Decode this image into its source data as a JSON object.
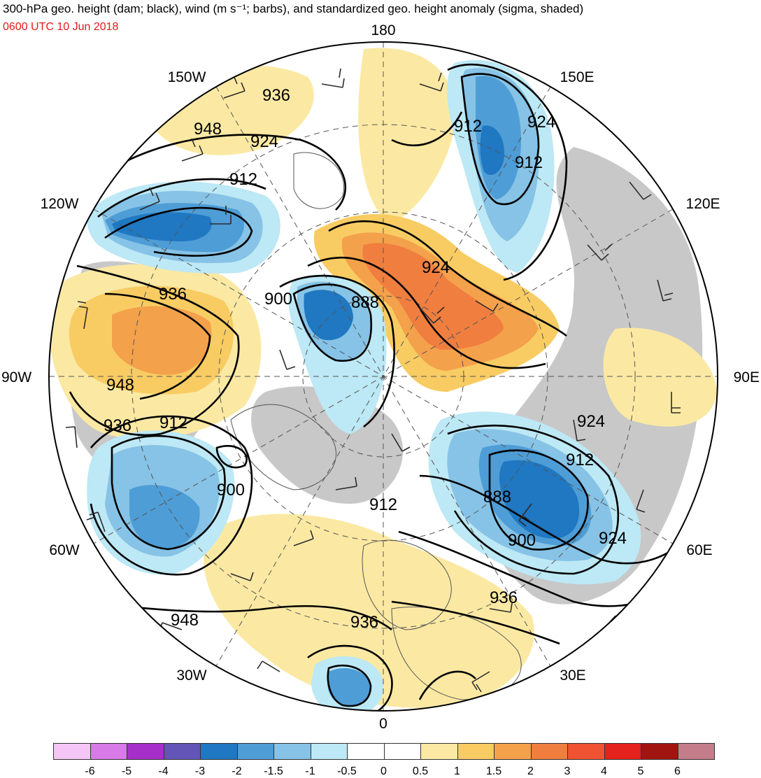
{
  "header": {
    "title": "300-hPa geo. height (dam; black), wind (m s⁻¹; barbs), and standardized geo. height anomaly (sigma, shaded)",
    "valid_time": "0600 UTC 10 Jun 2018"
  },
  "map": {
    "projection": "north polar stereographic",
    "meridian_labels": [
      {
        "id": "lbl-180",
        "text": "180"
      },
      {
        "id": "lbl-150e",
        "text": "150E"
      },
      {
        "id": "lbl-120e",
        "text": "120E"
      },
      {
        "id": "lbl-90e",
        "text": "90E"
      },
      {
        "id": "lbl-60e",
        "text": "60E"
      },
      {
        "id": "lbl-30e",
        "text": "30E"
      },
      {
        "id": "lbl-0",
        "text": "0"
      },
      {
        "id": "lbl-30w",
        "text": "30W"
      },
      {
        "id": "lbl-60w",
        "text": "60W"
      },
      {
        "id": "lbl-90w",
        "text": "90W"
      },
      {
        "id": "lbl-120w",
        "text": "120W"
      },
      {
        "id": "lbl-150w",
        "text": "150W"
      }
    ],
    "contour_labels": [
      "936",
      "948",
      "924",
      "912",
      "912",
      "924",
      "912",
      "924",
      "936",
      "900",
      "888",
      "948",
      "936",
      "912",
      "900",
      "912",
      "924",
      "912",
      "888",
      "900",
      "924",
      "936",
      "948",
      "936"
    ],
    "colors": {
      "contour": "#000000",
      "barb": "#2b2b2b",
      "neutral_gray": "#c8c8c8",
      "land_outline": "#555555"
    }
  },
  "colorbar": {
    "tick_labels": [
      "-6",
      "-5",
      "-4",
      "-3",
      "-2",
      "-1.5",
      "-1",
      "-0.5",
      "0",
      "0.5",
      "1",
      "1.5",
      "2",
      "3",
      "4",
      "5",
      "6"
    ],
    "colors": [
      "#f4c6f6",
      "#d87ae8",
      "#a62fc9",
      "#6355b8",
      "#1f78c1",
      "#4e9dd6",
      "#86c3e6",
      "#bde8f5",
      "#ffffff",
      "#ffffff",
      "#fbe9a3",
      "#f8cc63",
      "#f4a14b",
      "#f07e3f",
      "#ef5331",
      "#e5221e",
      "#a0150f",
      "#c47d8a"
    ]
  }
}
